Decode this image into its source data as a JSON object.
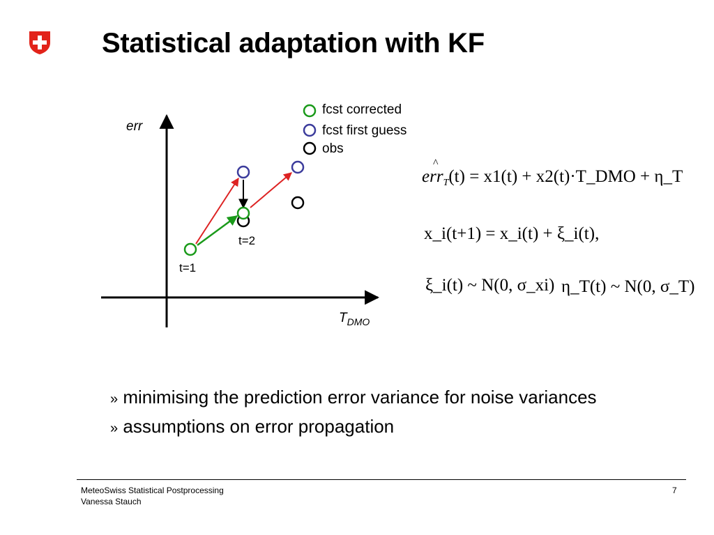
{
  "slide": {
    "title": "Statistical adaptation with KF"
  },
  "diagram": {
    "y_axis_label": "err",
    "x_axis_label_main": "T",
    "x_axis_label_sub": "DMO",
    "legend": [
      {
        "label": "fcst corrected",
        "color": "#1a9a1a"
      },
      {
        "label": "fcst first guess",
        "color": "#3c3c9c"
      },
      {
        "label": "obs",
        "color": "#000000"
      }
    ],
    "point_labels": {
      "t1": "t=1",
      "t2": "t=2"
    },
    "colors": {
      "corrected_arrow": "#1a9a1a",
      "first_guess_arrow": "#dd2222",
      "correction_arrow": "#000000"
    }
  },
  "equations": {
    "eq1": {
      "hat": "^",
      "lhs": "err",
      "lhs_sub": "T",
      "rhs": "(t) = x1(t) + x2(t)·T_DMO + η_T"
    },
    "eq2": "x_i(t+1) = x_i(t) + ξ_i(t),",
    "eq3a": "ξ_i(t) ~ N(0, σ_xi)",
    "eq3b": "η_T(t) ~ N(0, σ_T)"
  },
  "bullets": [
    {
      "marker": "»",
      "text": "minimising the prediction error variance for noise variances"
    },
    {
      "marker": "»",
      "text": "assumptions on error propagation"
    }
  ],
  "footer": {
    "line1": "MeteoSwiss Statistical Postprocessing",
    "line2": "Vanessa Stauch",
    "page_number": "7"
  }
}
